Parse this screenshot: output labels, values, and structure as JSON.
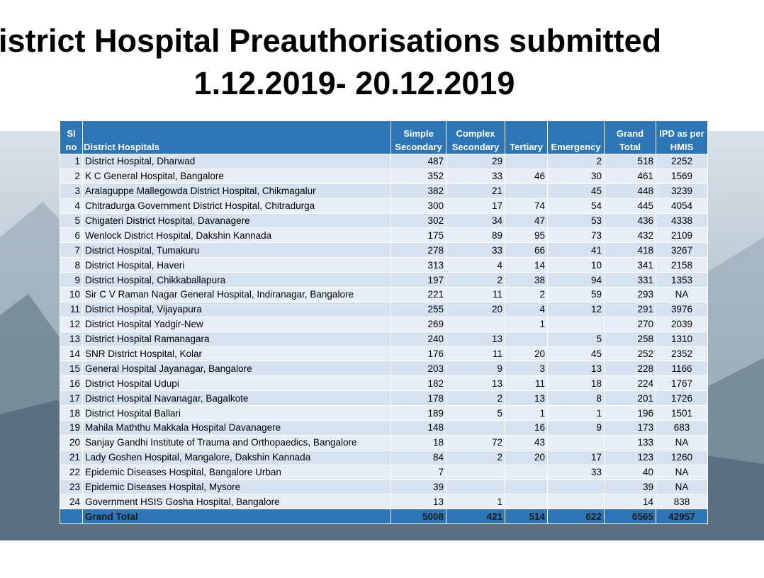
{
  "header": {
    "title_line1": "istrict Hospital Preauthorisations submitted",
    "title_line2": "1.12.2019- 20.12.2019"
  },
  "table": {
    "columns": [
      "Sl no",
      "District Hospitals",
      "Simple Secondary",
      "Complex Secondary",
      "Tertiary",
      "Emergency",
      "Grand Total",
      "IPD as per HMIS"
    ],
    "rows": [
      [
        1,
        "District Hospital, Dharwad",
        487,
        29,
        null,
        2,
        518,
        2252
      ],
      [
        2,
        "K C General Hospital, Bangalore",
        352,
        33,
        46,
        30,
        461,
        1569
      ],
      [
        3,
        "Aralaguppe Mallegowda District Hospital, Chikmagalur",
        382,
        21,
        null,
        45,
        448,
        3239
      ],
      [
        4,
        "Chitradurga Government District Hospital, Chitradurga",
        300,
        17,
        74,
        54,
        445,
        4054
      ],
      [
        5,
        "Chigateri District Hospital, Davanagere",
        302,
        34,
        47,
        53,
        436,
        4338
      ],
      [
        6,
        "Wenlock District Hospital, Dakshin Kannada",
        175,
        89,
        95,
        73,
        432,
        2109
      ],
      [
        7,
        "District Hospital, Tumakuru",
        278,
        33,
        66,
        41,
        418,
        3267
      ],
      [
        8,
        "District Hospital, Haveri",
        313,
        4,
        14,
        10,
        341,
        2158
      ],
      [
        9,
        "District Hospital, Chikkaballapura",
        197,
        2,
        38,
        94,
        331,
        1353
      ],
      [
        10,
        "Sir C V Raman Nagar General Hospital, Indiranagar, Bangalore",
        221,
        11,
        2,
        59,
        293,
        "NA"
      ],
      [
        11,
        "District Hospital, Vijayapura",
        255,
        20,
        4,
        12,
        291,
        3976
      ],
      [
        12,
        "District Hospital Yadgir-New",
        269,
        null,
        1,
        null,
        270,
        2039
      ],
      [
        13,
        "District Hospital Ramanagara",
        240,
        13,
        null,
        5,
        258,
        1310
      ],
      [
        14,
        "SNR District Hospital, Kolar",
        176,
        11,
        20,
        45,
        252,
        2352
      ],
      [
        15,
        "General Hospital Jayanagar, Bangalore",
        203,
        9,
        3,
        13,
        228,
        1166
      ],
      [
        16,
        "District Hospital Udupi",
        182,
        13,
        11,
        18,
        224,
        1767
      ],
      [
        17,
        "District Hospital Navanagar, Bagalkote",
        178,
        2,
        13,
        8,
        201,
        1726
      ],
      [
        18,
        "District Hospital Ballari",
        189,
        5,
        1,
        1,
        196,
        1501
      ],
      [
        19,
        "Mahila Maththu Makkala Hospital Davanagere",
        148,
        null,
        16,
        9,
        173,
        683
      ],
      [
        20,
        "Sanjay Gandhi Institute of Trauma and Orthopaedics, Bangalore",
        18,
        72,
        43,
        null,
        133,
        "NA"
      ],
      [
        21,
        "Lady Goshen Hospital, Mangalore, Dakshin Kannada",
        84,
        2,
        20,
        17,
        123,
        1260
      ],
      [
        22,
        "Epidemic Diseases Hospital, Bangalore Urban",
        7,
        null,
        null,
        33,
        40,
        "NA"
      ],
      [
        23,
        "Epidemic Diseases Hospital, Mysore",
        39,
        null,
        null,
        null,
        39,
        "NA"
      ],
      [
        24,
        "Government HSIS Gosha Hospital, Bangalore",
        13,
        1,
        null,
        null,
        14,
        838
      ]
    ],
    "total": {
      "label": "Grand Total",
      "values": [
        5008,
        421,
        514,
        622,
        6565,
        42957
      ]
    }
  }
}
